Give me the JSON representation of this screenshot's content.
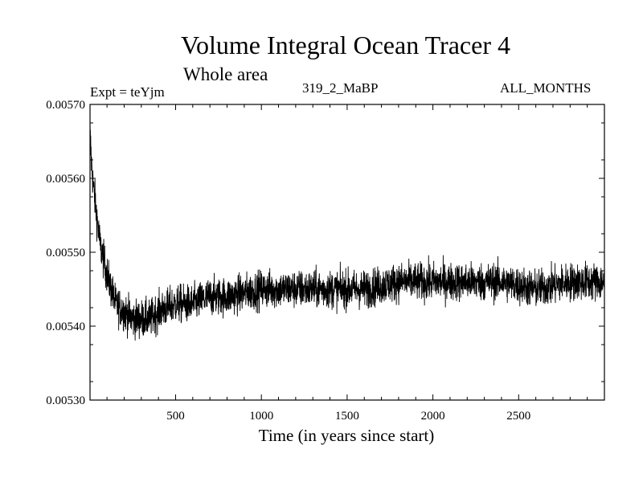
{
  "chart_data": {
    "type": "line",
    "title": "Volume Integral Ocean Tracer 4",
    "subtitle": "Whole area",
    "annotations": {
      "experiment": "Expt = teYjm",
      "run": "319_2_MaBP",
      "months": "ALL_MONTHS"
    },
    "xlabel": "Time (in years since start)",
    "ylabel": "",
    "xlim": [
      1,
      3000
    ],
    "ylim": [
      0.0053,
      0.0057
    ],
    "x_ticks": [
      500,
      1000,
      1500,
      2000,
      2500
    ],
    "x_tick_labels": [
      "500",
      "1000",
      "1500",
      "2000",
      "2500"
    ],
    "y_ticks": [
      0.0053,
      0.0054,
      0.0055,
      0.0056,
      0.0057
    ],
    "y_tick_labels": [
      "0.00530",
      "0.00540",
      "0.00550",
      "0.00560",
      "0.00570"
    ],
    "series": [
      {
        "name": "Volume Integral Ocean Tracer 4",
        "color": "#000000",
        "x": [
          1,
          10,
          20,
          30,
          40,
          50,
          60,
          80,
          100,
          125,
          150,
          200,
          250,
          300,
          350,
          400,
          500,
          600,
          700,
          800,
          1000,
          1200,
          1400,
          1500,
          1600,
          1800,
          2000,
          2200,
          2400,
          2600,
          2800,
          3000
        ],
        "values": [
          0.00566,
          0.00562,
          0.00559,
          0.00557,
          0.00555,
          0.00553,
          0.00551,
          0.00549,
          0.00547,
          0.00545,
          0.00543,
          0.00542,
          0.00541,
          0.00541,
          0.00541,
          0.00542,
          0.00543,
          0.00543,
          0.00544,
          0.00544,
          0.00545,
          0.00545,
          0.00545,
          0.00545,
          0.00545,
          0.00546,
          0.00546,
          0.00546,
          0.00546,
          0.00545,
          0.00546,
          0.00546
        ],
        "noise_amplitude": 4e-05
      }
    ]
  }
}
